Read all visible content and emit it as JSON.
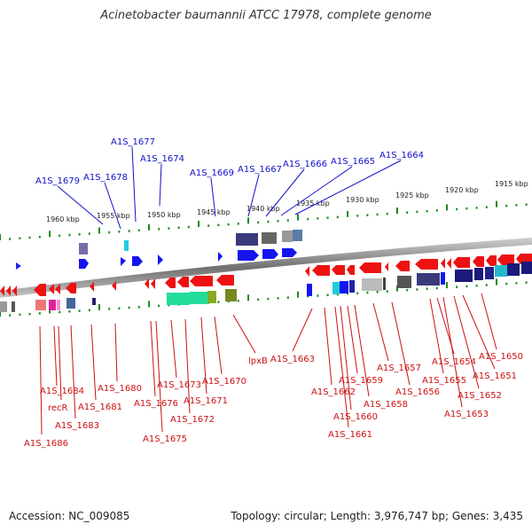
{
  "title": "Acinetobacter baumannii ATCC 17978, complete genome",
  "accession": "Accession: NC_009085",
  "summary": "Topology: circular; Length: 3,976,747 bp; Genes: 3,435",
  "colors": {
    "forward_label": "#1010cc",
    "reverse_label": "#cc1010",
    "tick": "#1a8a1a",
    "backbone": "#909090"
  },
  "scale_ticks": [
    "1960 kbp",
    "1955 kbp",
    "1950 kbp",
    "1945 kbp",
    "1940 kbp",
    "1935 kbp",
    "1930 kbp",
    "1925 kbp",
    "1920 kbp",
    "1915 kbp"
  ],
  "top_labels": [
    "A1S_1679",
    "A1S_1678",
    "A1S_1677",
    "A1S_1674",
    "A1S_1669",
    "A1S_1667",
    "A1S_1666",
    "A1S_1665",
    "A1S_1664"
  ],
  "bottom_labels": [
    "A1S_1686",
    "A1S_1684",
    "recR",
    "A1S_1683",
    "A1S_1681",
    "A1S_1680",
    "A1S_1676",
    "A1S_1675",
    "A1S_1673",
    "A1S_1672",
    "A1S_1671",
    "A1S_1670",
    "lpxB",
    "A1S_1663",
    "A1S_1662",
    "A1S_1661",
    "A1S_1660",
    "A1S_1659",
    "A1S_1658",
    "A1S_1657",
    "A1S_1656",
    "A1S_1655",
    "A1S_1654",
    "A1S_1653",
    "A1S_1652",
    "A1S_1651",
    "A1S_1650"
  ]
}
